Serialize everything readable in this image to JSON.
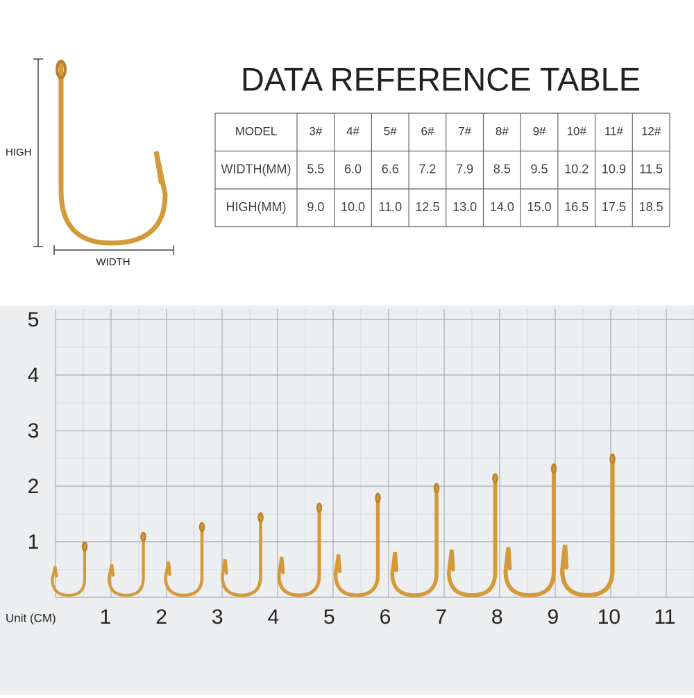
{
  "diagram": {
    "height_label": "HIGH",
    "width_label": "WIDTH"
  },
  "title": "DATA REFERENCE TABLE",
  "table": {
    "header": [
      "MODEL",
      "3#",
      "4#",
      "5#",
      "6#",
      "7#",
      "8#",
      "9#",
      "10#",
      "11#",
      "12#"
    ],
    "rows": [
      [
        "WIDTH(MM)",
        "5.5",
        "6.0",
        "6.6",
        "7.2",
        "7.9",
        "8.5",
        "9.5",
        "10.2",
        "10.9",
        "11.5"
      ],
      [
        "HIGH(MM)",
        "9.0",
        "10.0",
        "11.0",
        "12.5",
        "13.0",
        "14.0",
        "15.0",
        "16.5",
        "17.5",
        "18.5"
      ]
    ]
  },
  "ruler": {
    "unit": "Unit (CM)",
    "y_labels": [
      "1",
      "2",
      "3",
      "4",
      "5"
    ],
    "x_labels": [
      "1",
      "2",
      "3",
      "4",
      "5",
      "6",
      "7",
      "8",
      "9",
      "10",
      "11"
    ]
  }
}
